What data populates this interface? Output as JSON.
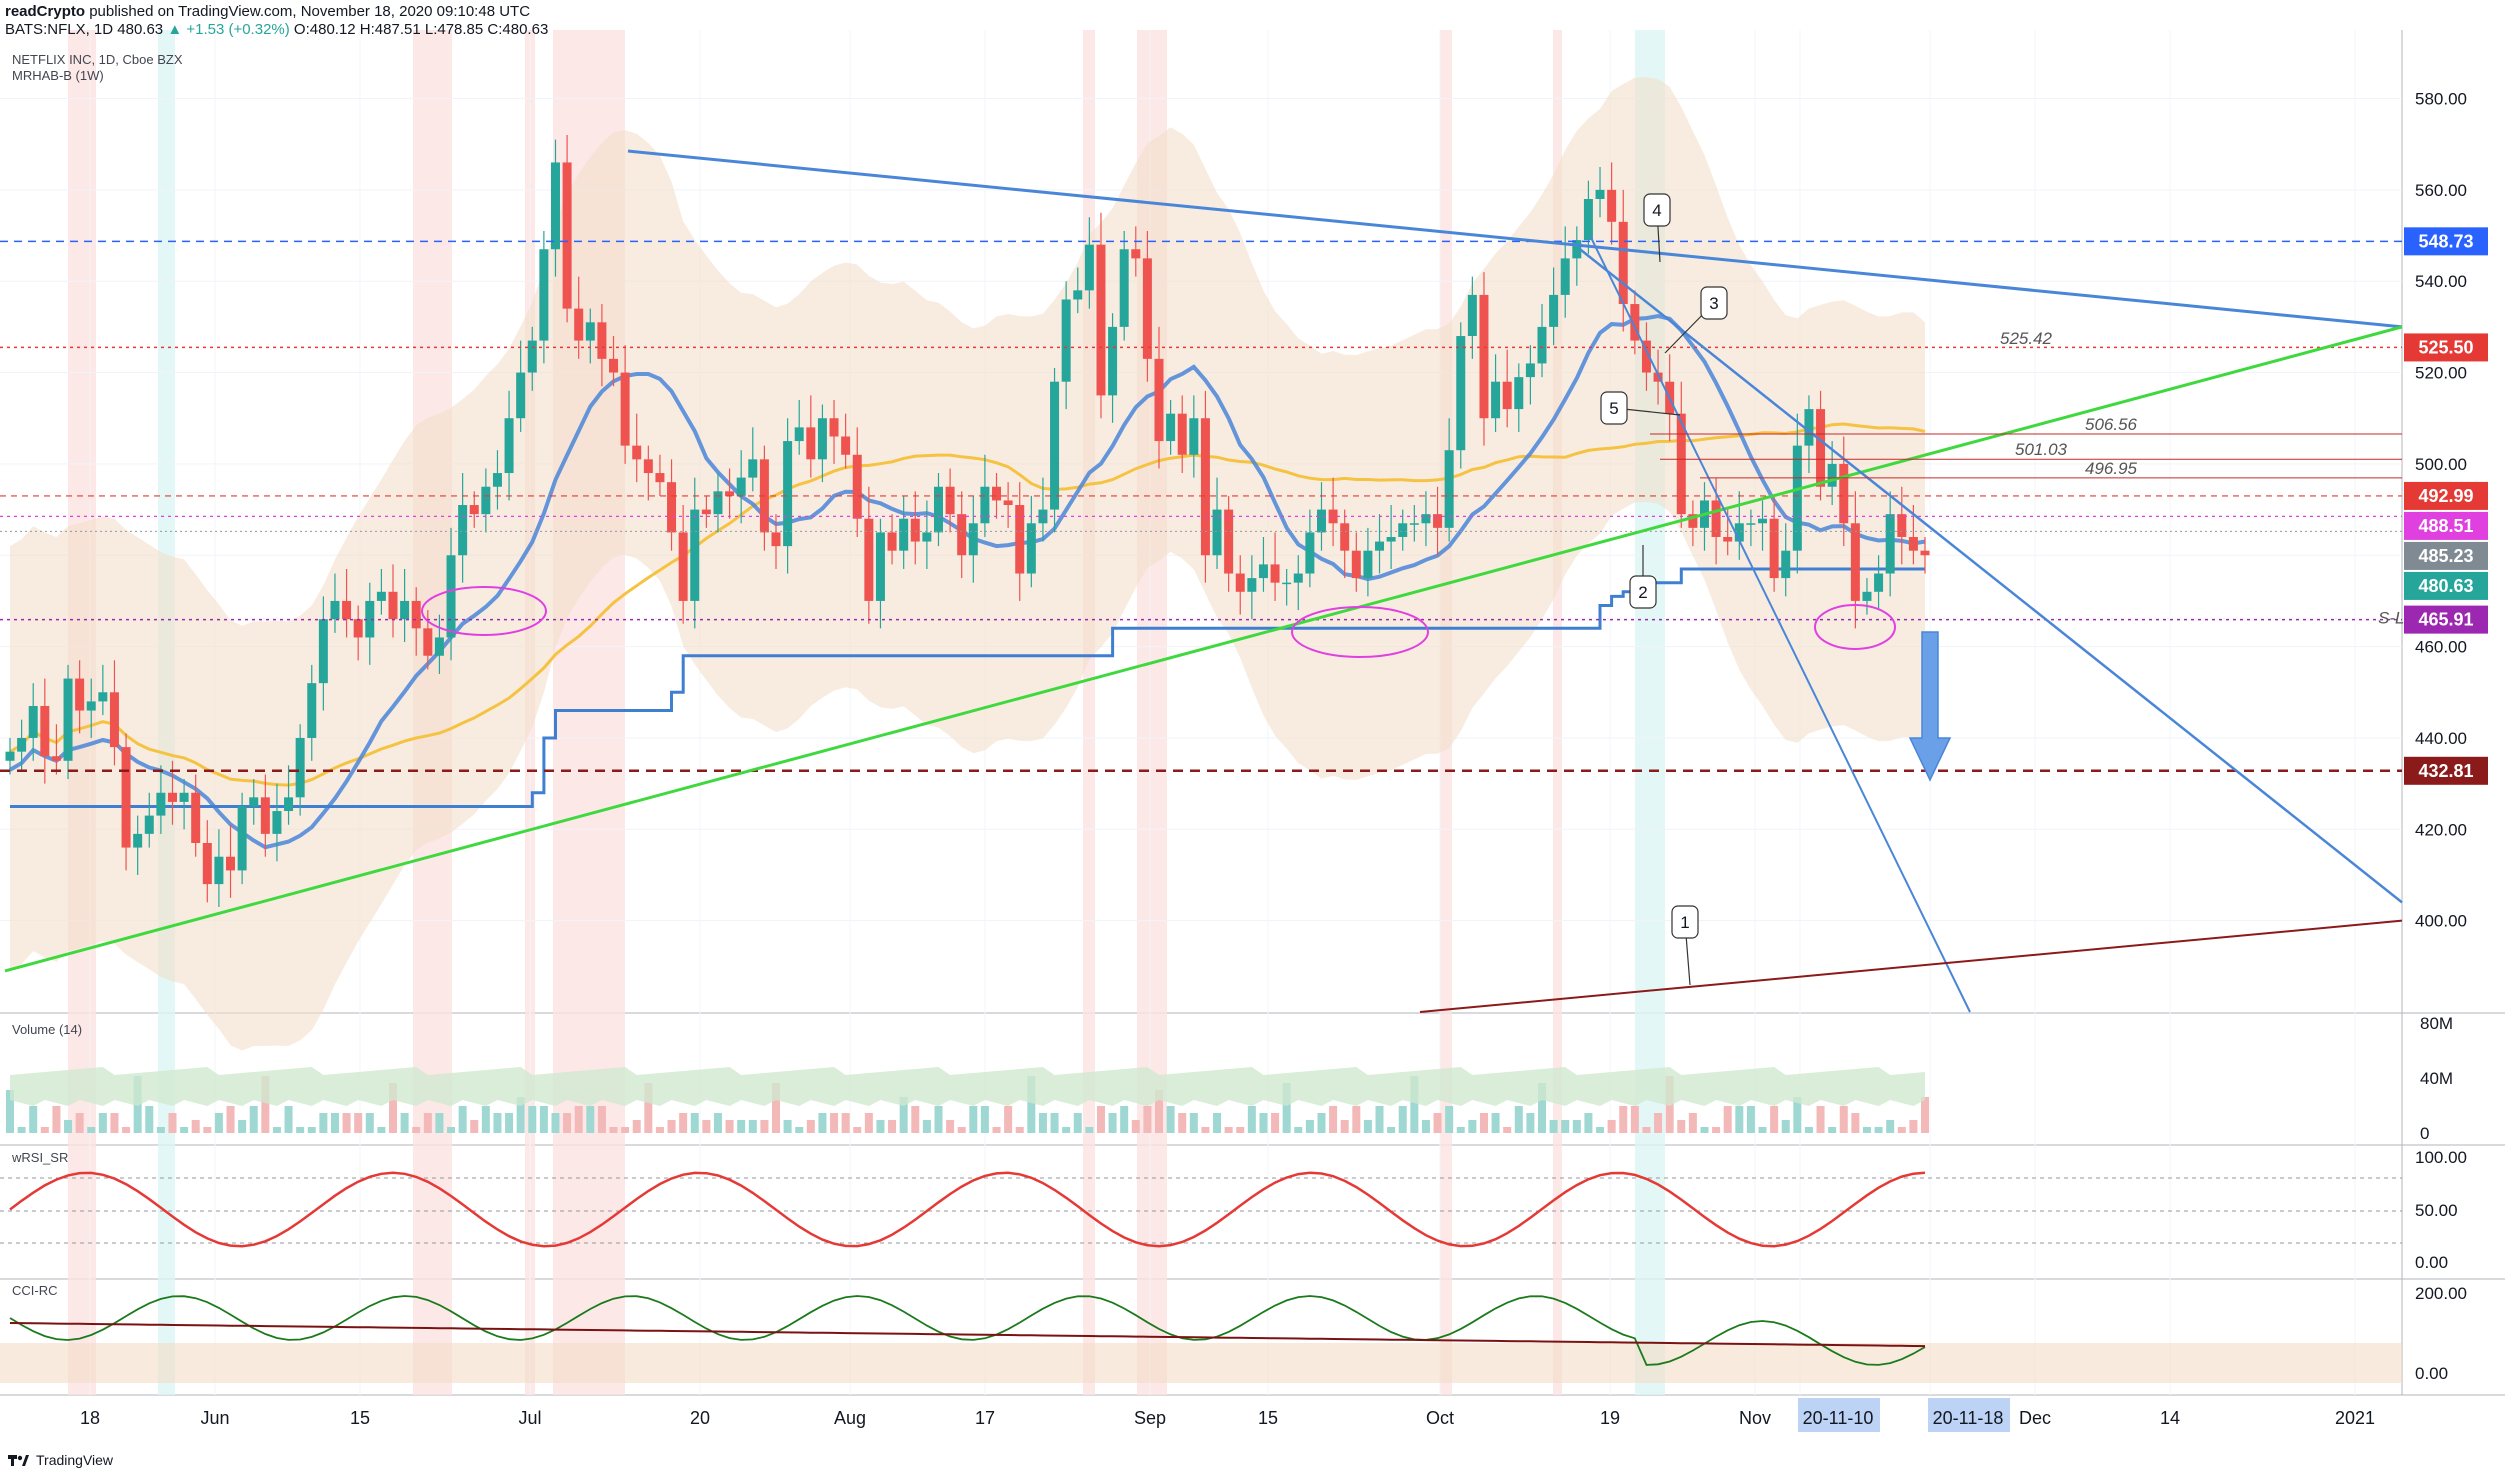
{
  "header": {
    "publisher": "readCrypto",
    "published_line": "published on TradingView.com, November 18, 2020 09:10:48 UTC",
    "ticker": "BATS:NFLX, 1D",
    "last": "480.63",
    "change": "▲ +1.53 (+0.32%)",
    "ohlc": "O:480.12 H:487.51 L:478.85 C:480.63"
  },
  "symbol_title": "NETFLIX INC, 1D, Cboe BZX",
  "indicator_label": "MRHAB-B (1W)",
  "pane_labels": {
    "volume": "Volume (14)",
    "rsi": "wRSI_SR",
    "cci": "CCI-RC"
  },
  "footer": {
    "brand": "TradingView"
  },
  "colors": {
    "up": "#26a69a",
    "down": "#ef5350",
    "trend_blue": "#4a86d8",
    "support_green": "#3fd93f",
    "dark_red": "#8b1a1a",
    "ma_orange": "#f5c242",
    "band_fill": "#f3dcc6",
    "magenta": "#e040e0"
  },
  "chart_data": [
    {
      "type": "candlestick",
      "title": "NETFLIX INC, 1D, Cboe BZX",
      "ylim": [
        380,
        595
      ],
      "y_ticks": [
        "580.00",
        "560.00",
        "540.00",
        "520.00",
        "500.00",
        "480.00",
        "460.00",
        "440.00",
        "420.00",
        "400.00"
      ],
      "x_ticks": [
        "18",
        "Jun",
        "15",
        "Jul",
        "20",
        "Aug",
        "17",
        "Sep",
        "15",
        "Oct",
        "19",
        "Nov",
        "20-11-10",
        "20-11-18",
        "Dec",
        "14",
        "2021"
      ],
      "price_labels": [
        {
          "value": "548.73",
          "color": "#2962ff"
        },
        {
          "value": "525.50",
          "color": "#e53935"
        },
        {
          "value": "492.99",
          "color": "#e53935"
        },
        {
          "value": "488.51",
          "color": "#e040e0"
        },
        {
          "value": "485.23",
          "color": "#7f8a93"
        },
        {
          "value": "480.63",
          "color": "#26a69a"
        },
        {
          "value": "465.91",
          "color": "#9c27b0"
        },
        {
          "value": "432.81",
          "color": "#8b1a1a"
        }
      ],
      "level_annotations": [
        "525.42",
        "506.56",
        "501.03",
        "496.95",
        "S-L"
      ],
      "wave_labels": [
        "1",
        "2",
        "3",
        "4",
        "5"
      ],
      "levels": {
        "resistance": 548.73,
        "stop": 525.5,
        "r1": 492.99,
        "r2": 488.51,
        "mid": 485.23,
        "last": 480.63,
        "support": 465.91,
        "target": 432.81
      },
      "close_series": [
        437,
        440,
        447,
        436,
        435,
        453,
        446,
        448,
        450,
        438,
        416,
        419,
        423,
        428,
        426,
        428,
        417,
        408,
        414,
        411,
        425,
        427,
        419,
        424,
        427,
        440,
        452,
        466,
        470,
        466,
        462,
        470,
        472,
        466,
        470,
        464,
        458,
        462,
        480,
        491,
        489,
        495,
        498,
        510,
        520,
        527,
        547,
        566,
        534,
        527,
        531,
        523,
        520,
        504,
        501,
        498,
        496,
        485,
        470,
        490,
        489,
        494,
        493,
        497,
        501,
        485,
        482,
        505,
        508,
        501,
        510,
        506,
        502,
        488,
        470,
        485,
        481,
        488,
        483,
        485,
        495,
        489,
        480,
        487,
        495,
        492,
        491,
        476,
        487,
        490,
        518,
        536,
        538,
        548,
        515,
        530,
        547,
        545,
        523,
        505,
        511,
        502,
        510,
        480,
        490,
        476,
        472,
        475,
        478,
        474,
        474,
        476,
        485,
        490,
        487,
        481,
        475,
        481,
        483,
        484,
        487,
        487,
        489,
        486,
        503,
        528,
        537,
        510,
        518,
        512,
        519,
        522,
        530,
        537,
        545,
        549,
        558,
        560,
        553,
        535,
        527,
        520,
        518,
        511,
        489,
        486,
        492,
        484,
        483,
        487,
        487,
        488,
        475,
        481,
        504,
        512,
        495,
        500,
        487,
        470,
        472,
        476,
        489,
        484,
        481,
        480
      ],
      "volume_label_ticks": [
        "80M",
        "40M",
        "0"
      ],
      "rsi_ticks": [
        "100.00",
        "50.00",
        "0.00"
      ],
      "cci_ticks": [
        "200.00",
        "0.00"
      ]
    }
  ]
}
